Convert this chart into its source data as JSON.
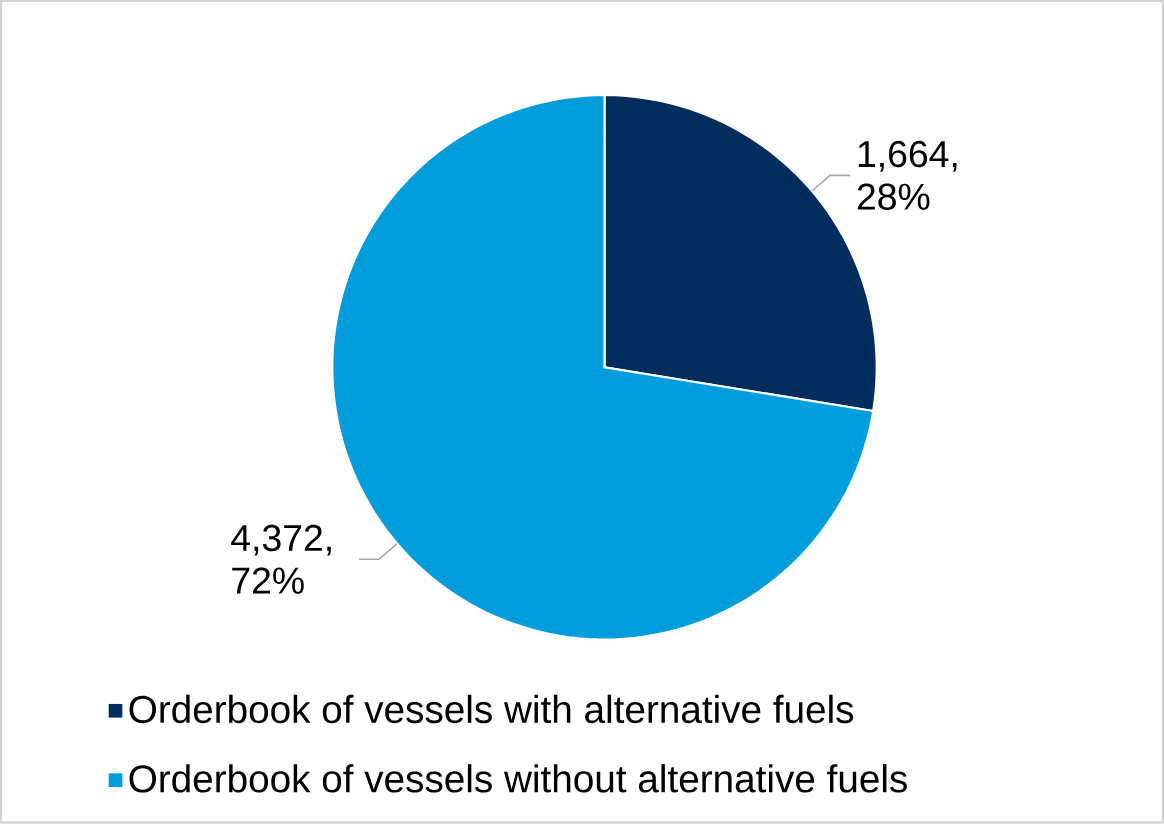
{
  "chart_data": {
    "type": "pie",
    "categories": [
      "Orderbook of vessels with alternative fuels",
      "Orderbook of vessels without alternative fuels"
    ],
    "values": [
      1664,
      4372
    ],
    "colors": [
      "#002d5c",
      "#009ddc"
    ],
    "value_labels": [
      "1,664, 28%",
      "4,372, 72%"
    ],
    "legend": "bottom"
  }
}
